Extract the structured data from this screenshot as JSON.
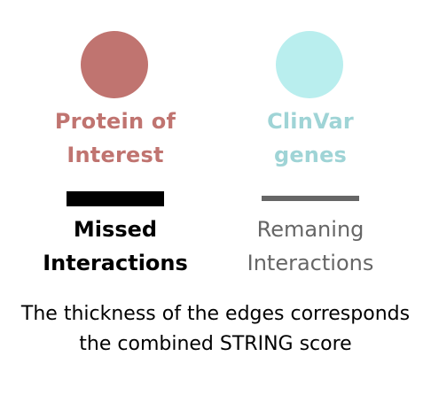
{
  "legend": {
    "protein_of_interest": {
      "line1": "Protein of",
      "line2": "Interest",
      "color": "#c07470"
    },
    "clinvar_genes": {
      "line1": "ClinVar",
      "line2": "genes",
      "color": "#b9eeee",
      "text_color": "#9fd4d6"
    },
    "missed_interactions": {
      "line1": "Missed",
      "line2": "Interactions",
      "color": "#000000"
    },
    "remaining_interactions": {
      "line1": "Remaning",
      "line2": "Interactions",
      "color": "#666666"
    }
  },
  "note": {
    "line1": "The thickness of the edges corresponds",
    "line2": "the combined STRING score"
  }
}
